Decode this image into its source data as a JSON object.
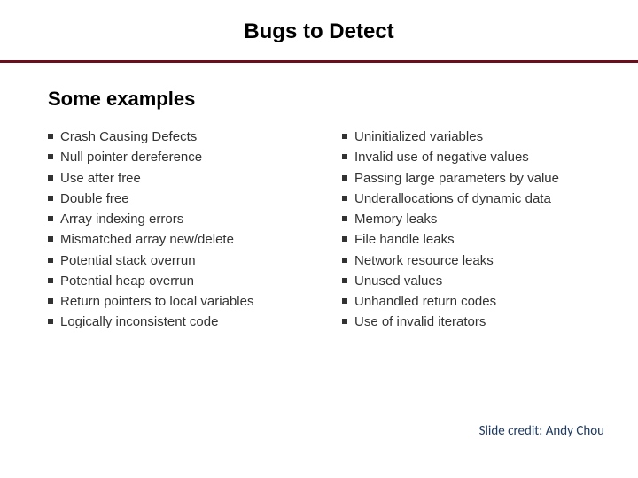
{
  "title": "Bugs to Detect",
  "subtitle": "Some examples",
  "divider_color": "#6b0f1a",
  "background_color": "#ffffff",
  "title_fontsize": 24,
  "subtitle_fontsize": 22,
  "item_fontsize": 15,
  "item_color": "#333333",
  "left_items": [
    "Crash Causing Defects",
    "Null pointer dereference",
    "Use after free",
    "Double free",
    "Array indexing errors",
    "Mismatched array new/delete",
    "Potential stack overrun",
    "Potential heap overrun",
    "Return pointers to local variables",
    "Logically inconsistent code"
  ],
  "right_items": [
    "Uninitialized variables",
    "Invalid use of negative values",
    "Passing large parameters by value",
    "Underallocations of dynamic data",
    "Memory leaks",
    "File handle leaks",
    "Network resource leaks",
    "Unused values",
    "Unhandled return codes",
    "Use of invalid iterators"
  ],
  "credit": "Slide credit: Andy Chou",
  "credit_color": "#1f3a63"
}
